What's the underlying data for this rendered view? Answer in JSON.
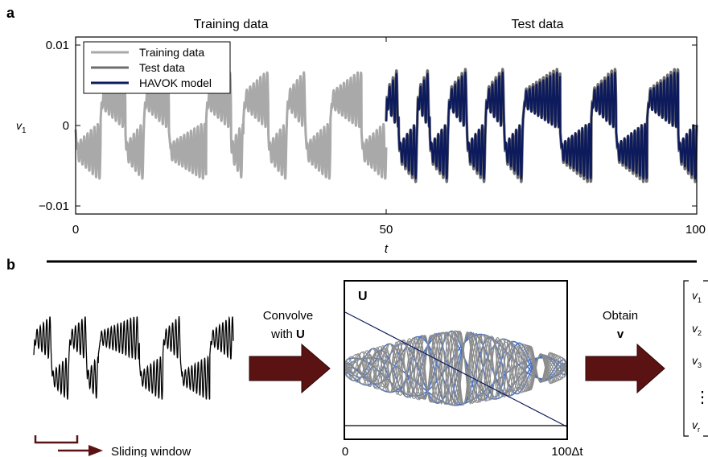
{
  "panel_a": {
    "label": "a",
    "header_left": "Training data",
    "header_right": "Test data",
    "ylabel_main": "v",
    "ylabel_sub": "1",
    "xlabel": "t",
    "yticks": [
      {
        "value": 0.01,
        "label": "0.01"
      },
      {
        "value": 0,
        "label": "0"
      },
      {
        "value": -0.01,
        "label": "−0.01"
      }
    ],
    "xticks": [
      {
        "value": 0,
        "label": "0"
      },
      {
        "value": 50,
        "label": "50"
      },
      {
        "value": 100,
        "label": "100"
      }
    ],
    "legend": [
      {
        "name": "Training data",
        "color": "#a9a9a9"
      },
      {
        "name": "Test data",
        "color": "#6e6e6e"
      },
      {
        "name": "HAVOK model",
        "color": "#0d1b5c"
      }
    ]
  },
  "panel_b": {
    "label": "b",
    "arrow1_line1": "Convolve",
    "arrow1_line2": "with ",
    "arrow1_bold": "U",
    "arrow2_line1": "Obtain",
    "arrow2_bold": "v",
    "box_title": "U",
    "box_x_start": "0",
    "box_x_end": "100Δt",
    "sliding_label": "Sliding window",
    "vector_entries": [
      {
        "main": "v",
        "sub": "1"
      },
      {
        "main": "v",
        "sub": "2"
      },
      {
        "main": "v",
        "sub": "3"
      },
      {
        "main": "⋮",
        "sub": ""
      },
      {
        "main": "v",
        "sub": "r"
      }
    ],
    "arrow_color": "#5a1212",
    "blue_color": "#4a72c0",
    "gray_color": "#8c8c8c"
  },
  "chart_data": [
    {
      "type": "line",
      "title": "",
      "xlabel": "t",
      "ylabel": "v1",
      "xlim": [
        0,
        100
      ],
      "ylim": [
        -0.011,
        0.011
      ],
      "grid": false,
      "legend_position": "top-left",
      "series": [
        {
          "name": "Training data",
          "color": "#a9a9a9",
          "x_range": [
            0,
            50
          ],
          "regimes": [
            [
              0,
              4,
              -1
            ],
            [
              4,
              8,
              1
            ],
            [
              8,
              11,
              -1
            ],
            [
              11,
              15,
              1
            ],
            [
              15,
              21,
              -1
            ],
            [
              21,
              25,
              1
            ],
            [
              25,
              27,
              -1
            ],
            [
              27,
              31,
              1
            ],
            [
              31,
              34,
              -1
            ],
            [
              34,
              37,
              1
            ],
            [
              37,
              41,
              -1
            ],
            [
              41,
              46,
              1
            ],
            [
              46,
              50,
              -1
            ]
          ]
        },
        {
          "name": "Test data",
          "color": "#6e6e6e",
          "x_range": [
            50,
            100
          ],
          "regimes": [
            [
              50,
              52,
              1
            ],
            [
              52,
              55,
              -1
            ],
            [
              55,
              57,
              1
            ],
            [
              57,
              60,
              -1
            ],
            [
              60,
              63,
              1
            ],
            [
              63,
              66,
              -1
            ],
            [
              66,
              69,
              1
            ],
            [
              69,
              72,
              -1
            ],
            [
              72,
              78,
              1
            ],
            [
              78,
              83,
              -1
            ],
            [
              83,
              87,
              1
            ],
            [
              87,
              92,
              -1
            ],
            [
              92,
              97,
              1
            ],
            [
              97,
              100,
              -1
            ]
          ]
        },
        {
          "name": "HAVOK model",
          "color": "#0d1b5c",
          "x_range": [
            50,
            100
          ],
          "regimes": [
            [
              50,
              52,
              1
            ],
            [
              52,
              55,
              -1
            ],
            [
              55,
              57,
              1
            ],
            [
              57,
              60,
              -1
            ],
            [
              60,
              63,
              1
            ],
            [
              63,
              66,
              -1
            ],
            [
              66,
              69,
              1
            ],
            [
              69,
              72,
              -1
            ],
            [
              72,
              78,
              1
            ],
            [
              78,
              83,
              -1
            ],
            [
              83,
              87,
              1
            ],
            [
              87,
              92,
              -1
            ],
            [
              92,
              97,
              1
            ],
            [
              97,
              100,
              -1
            ]
          ]
        }
      ]
    },
    {
      "type": "line",
      "title": "U",
      "xlabel": "",
      "x_tick_labels": [
        "0",
        "100Δt"
      ],
      "grid": false,
      "series": [
        {
          "name": "",
          "color": "#4a72c0",
          "mode_indices": [
            0,
            1,
            2,
            3,
            4,
            5,
            6,
            7
          ]
        },
        {
          "name": "",
          "color": "#8c8c8c",
          "mode_indices": [
            8,
            9,
            10,
            11,
            12,
            13,
            14,
            15,
            16,
            17,
            18,
            19,
            20,
            21
          ]
        }
      ]
    }
  ]
}
